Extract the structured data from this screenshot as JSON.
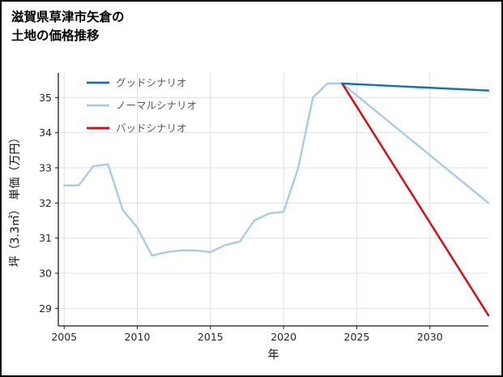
{
  "title": {
    "line1": "滋賀県草津市矢倉の",
    "line2": "土地の価格推移"
  },
  "colors": {
    "good": "#1170b9",
    "normal": "#a6cbee",
    "bad": "#e8000b",
    "grid": "#e0e0e0",
    "axis": "#1a1a1a",
    "tick_text": "#262626",
    "legend_text": "#595959"
  },
  "chart_data": {
    "type": "line",
    "title": "滋賀県草津市矢倉の土地の価格推移",
    "xlabel": "年",
    "ylabel": "坪（3.3㎡） 単価（万円）",
    "xlim": [
      2004.6,
      2034.0
    ],
    "ylim": [
      28.5,
      35.7
    ],
    "xticks": [
      2005,
      2010,
      2015,
      2020,
      2025,
      2030
    ],
    "yticks": [
      29,
      30,
      31,
      32,
      33,
      34,
      35
    ],
    "grid": true,
    "legend_position": "upper-left",
    "legend": [
      "グッドシナリオ",
      "ノーマルシナリオ",
      "バッドシナリオ"
    ],
    "series": [
      {
        "name": "ノーマルシナリオ",
        "color": "#a6cbee",
        "x": [
          2005,
          2006,
          2007,
          2008,
          2009,
          2010,
          2011,
          2012,
          2013,
          2014,
          2015,
          2016,
          2017,
          2018,
          2019,
          2020,
          2021,
          2022,
          2023,
          2024,
          2034
        ],
        "values": [
          32.5,
          32.5,
          33.05,
          33.1,
          31.8,
          31.3,
          30.5,
          30.6,
          30.65,
          30.65,
          30.6,
          30.8,
          30.9,
          31.5,
          31.7,
          31.75,
          33.0,
          35.0,
          35.4,
          35.4,
          32.0
        ]
      },
      {
        "name": "バッドシナリオ",
        "color": "#e8000b",
        "x": [
          2024,
          2034
        ],
        "values": [
          35.4,
          28.8
        ]
      },
      {
        "name": "グッドシナリオ",
        "color": "#1170b9",
        "x": [
          2024,
          2034
        ],
        "values": [
          35.4,
          35.2
        ]
      }
    ]
  }
}
